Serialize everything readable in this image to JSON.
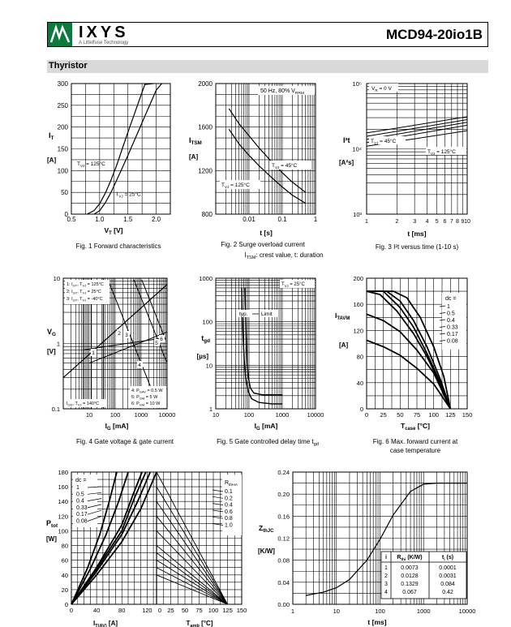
{
  "header": {
    "brand": "IXYS",
    "brand_sub": "A Littelfuse Technology",
    "part_number": "MCD94-20io1B"
  },
  "section": {
    "title": "Thyristor"
  },
  "chart_data": [
    {
      "id": "fig1",
      "type": "line",
      "xlabel": "V",
      "xlabel_sub": "T",
      "xunit": "[V]",
      "ylabel": "I",
      "ylabel_sub": "T",
      "yunit": "[A]",
      "xlim": [
        0.5,
        2.25
      ],
      "ylim": [
        0,
        300
      ],
      "xticks": [
        0.5,
        1.0,
        1.5,
        2.0
      ],
      "xtick_labels": [
        "0.5",
        "1.0",
        "1.5",
        "2.0"
      ],
      "yticks": [
        0,
        50,
        100,
        150,
        200,
        250,
        300
      ],
      "ytick_labels": [
        "0",
        "50",
        "100",
        "150",
        "200",
        "250",
        "300"
      ],
      "caption": "Fig. 1  Forward characteristics",
      "series": [
        {
          "name": "T",
          "name_sub": "VJ",
          "name_suffix": " = 125°C",
          "x": [
            0.78,
            0.9,
            1.0,
            1.1,
            1.2,
            1.3,
            1.4,
            1.5,
            1.6,
            1.7,
            1.8,
            1.95
          ],
          "y": [
            0,
            8,
            24,
            48,
            78,
            112,
            150,
            188,
            225,
            262,
            298,
            300
          ]
        },
        {
          "name": "T",
          "name_sub": "VJ",
          "name_suffix": " = 25°C",
          "x": [
            0.9,
            1.0,
            1.1,
            1.2,
            1.3,
            1.4,
            1.5,
            1.6,
            1.7,
            1.8,
            1.9,
            2.0,
            2.1
          ],
          "y": [
            0,
            8,
            26,
            50,
            78,
            106,
            135,
            165,
            195,
            225,
            255,
            285,
            300
          ]
        }
      ]
    },
    {
      "id": "fig2",
      "type": "line",
      "xlabel": "t",
      "xunit": "[s]",
      "ylabel": "I",
      "ylabel_sub": "TSM",
      "yunit": "[A]",
      "xscale": "log",
      "xlim": [
        0.001,
        1
      ],
      "ylim": [
        800,
        2000
      ],
      "xticks": [
        0.01,
        0.1,
        1
      ],
      "xtick_labels": [
        "0.01",
        "0.1",
        "1"
      ],
      "yticks": [
        800,
        1200,
        1600,
        2000
      ],
      "ytick_labels": [
        "800",
        "1200",
        "1600",
        "2000"
      ],
      "annotation": "50 Hz, 80% V",
      "annotation_sub": "RRM",
      "caption": "Fig. 2  Surge overload current",
      "caption2": "I",
      "caption2_sub": "TSM",
      "caption2_suffix": ": crest value, t: duration",
      "series": [
        {
          "name": "T",
          "name_sub": "VJ",
          "name_suffix": " = 45°C",
          "x": [
            0.0025,
            0.005,
            0.01,
            0.02,
            0.05,
            0.1,
            0.2,
            0.5
          ],
          "y": [
            1770,
            1630,
            1520,
            1410,
            1275,
            1180,
            1095,
            1000
          ]
        },
        {
          "name": "T",
          "name_sub": "VJ",
          "name_suffix": " = 125°C",
          "x": [
            0.0025,
            0.005,
            0.01,
            0.02,
            0.05,
            0.1,
            0.2,
            0.5
          ],
          "y": [
            1580,
            1445,
            1340,
            1245,
            1130,
            1050,
            975,
            900
          ]
        }
      ]
    },
    {
      "id": "fig3",
      "type": "line",
      "xlabel": "t",
      "xunit": "[ms]",
      "ylabel": "I²t",
      "yunit": "[A²s]",
      "xscale": "log",
      "yscale": "log",
      "xlim": [
        1,
        10
      ],
      "ylim": [
        1000,
        100000
      ],
      "xticks": [
        1,
        2,
        3,
        4,
        5,
        6,
        7,
        8,
        9,
        10
      ],
      "xtick_labels": [
        "1",
        "2",
        "3",
        "4",
        "5",
        "6",
        "7",
        "8",
        "9",
        "10"
      ],
      "yticks": [
        1000,
        10000,
        100000
      ],
      "ytick_labels": [
        "10³",
        "10⁴",
        "10⁵"
      ],
      "annotation": "V",
      "annotation_sub": "R",
      "annotation_suffix": " = 0 V",
      "caption": "Fig. 3  I²t versus time (1-10 s)",
      "series": [
        {
          "name": "T",
          "name_sub": "VJ",
          "name_suffix": " = 45°C",
          "x": [
            1,
            10
          ],
          "y": [
            15600,
            28000
          ]
        },
        {
          "name": "T",
          "name_sub": "VJ",
          "name_suffix": " = 125°C",
          "x": [
            1,
            10
          ],
          "y": [
            12500,
            23000
          ]
        }
      ]
    },
    {
      "id": "fig4",
      "type": "line",
      "xlabel": "I",
      "xlabel_sub": "G",
      "xunit": "[mA]",
      "ylabel": "V",
      "ylabel_sub": "G",
      "yunit": "[V]",
      "xscale": "log",
      "yscale": "log",
      "xlim": [
        1,
        10000
      ],
      "ylim": [
        0.1,
        10
      ],
      "xticks": [
        10,
        100,
        1000,
        10000
      ],
      "xtick_labels": [
        "10",
        "100",
        "1000",
        "10000"
      ],
      "yticks": [
        0.1,
        1,
        10
      ],
      "ytick_labels": [
        "0.1",
        "1",
        "10"
      ],
      "legend_top": [
        "1: I",
        "GT",
        ", T",
        "VJ",
        " = 125°C",
        "2: I",
        "GT",
        ", T",
        "VJ",
        " =   25°C",
        "3: I",
        "GT",
        ", T",
        "VJ",
        " =  -40°C"
      ],
      "legend_bottom": [
        "4: P",
        "GAV",
        " = 0.5 W",
        "5: P",
        "GM",
        " =   5 W",
        "6: P",
        "GM",
        " =  10 W"
      ],
      "annotation": "I",
      "annotation_sub": "GD",
      ", T": "",
      "annotation_suffix": ", T",
      "annotation_sub2": "VJ",
      "annotation_suffix2": " = 140°C",
      "curve_labels": [
        "1",
        "2",
        "3",
        "4",
        "5",
        "6"
      ],
      "caption": "Fig. 4  Gate voltage & gate current"
    },
    {
      "id": "fig5",
      "type": "line",
      "xlabel": "I",
      "xlabel_sub": "G",
      "xunit": "[mA]",
      "ylabel": "t",
      "ylabel_sub": "gd",
      "yunit": "[µs]",
      "xscale": "log",
      "yscale": "log",
      "xlim": [
        10,
        10000
      ],
      "ylim": [
        1,
        1000
      ],
      "xticks": [
        10,
        100,
        1000,
        10000
      ],
      "xtick_labels": [
        "10",
        "100",
        "1000",
        "10000"
      ],
      "yticks": [
        1,
        10,
        100,
        1000
      ],
      "ytick_labels": [
        "1",
        "10",
        "100",
        "1000"
      ],
      "annotation": "T",
      "annotation_sub": "VJ",
      "annotation_suffix": " = 25°C",
      "labels": [
        "typ.",
        "Limit"
      ],
      "caption": "Fig. 5  Gate controlled delay time t",
      "caption_sub": "gd",
      "series": [
        {
          "name": "typ.",
          "x": [
            60,
            62,
            66,
            72,
            80,
            95,
            120,
            200,
            500,
            1000
          ],
          "y": [
            600,
            200,
            50,
            12,
            5,
            2.5,
            1.7,
            1.4,
            1.3,
            1.3
          ]
        },
        {
          "name": "Limit",
          "x": [
            75,
            78,
            82,
            88,
            95,
            110,
            140,
            250,
            600,
            1000
          ],
          "y": [
            600,
            200,
            50,
            12,
            5.5,
            3,
            2.3,
            2.1,
            2.1,
            2.1
          ]
        }
      ]
    },
    {
      "id": "fig6",
      "type": "line",
      "xlabel": "T",
      "xlabel_sub": "case",
      "xunit": "[°C]",
      "ylabel": "I",
      "ylabel_sub": "TAVM",
      "yunit": "[A]",
      "xlim": [
        0,
        150
      ],
      "ylim": [
        0,
        200
      ],
      "xticks": [
        0,
        25,
        50,
        75,
        100,
        125,
        150
      ],
      "xtick_labels": [
        "0",
        "25",
        "50",
        "75",
        "100",
        "125",
        "150"
      ],
      "yticks": [
        0,
        40,
        80,
        120,
        160,
        200
      ],
      "ytick_labels": [
        "0",
        "40",
        "80",
        "120",
        "160",
        "200"
      ],
      "legend_title": "dc =",
      "legend": [
        "1",
        "0.5",
        "0.4",
        "0.33",
        "0.17",
        "0.08"
      ],
      "caption": "Fig. 6  Max. forward current at",
      "caption2": "case temperature",
      "series": [
        {
          "name": "1",
          "x": [
            0,
            40,
            60,
            80,
            100,
            115,
            125
          ],
          "y": [
            180,
            180,
            170,
            140,
            95,
            50,
            0
          ]
        },
        {
          "name": "0.5",
          "x": [
            0,
            30,
            50,
            70,
            90,
            110,
            125
          ],
          "y": [
            180,
            180,
            165,
            135,
            95,
            45,
            0
          ]
        },
        {
          "name": "0.4",
          "x": [
            0,
            25,
            50,
            70,
            90,
            110,
            125
          ],
          "y": [
            180,
            180,
            155,
            125,
            85,
            40,
            0
          ]
        },
        {
          "name": "0.33",
          "x": [
            0,
            20,
            45,
            70,
            90,
            110,
            125
          ],
          "y": [
            180,
            175,
            150,
            115,
            80,
            38,
            0
          ]
        },
        {
          "name": "0.17",
          "x": [
            0,
            25,
            50,
            75,
            100,
            125
          ],
          "y": [
            145,
            135,
            118,
            90,
            55,
            0
          ]
        },
        {
          "name": "0.08",
          "x": [
            0,
            25,
            50,
            75,
            100,
            125
          ],
          "y": [
            105,
            95,
            82,
            62,
            38,
            0
          ]
        }
      ]
    },
    {
      "id": "fig7",
      "type": "line",
      "xlabel": "I",
      "xlabel_sub": "T(AV)",
      "xunit": "[A]",
      "xlabel2": "T",
      "xlabel2_sub": "amb",
      "xunit2": "[°C]",
      "ylabel": "P",
      "ylabel_sub": "tot",
      "yunit": "[W]",
      "ylim": [
        0,
        180
      ],
      "yticks": [
        0,
        20,
        40,
        60,
        80,
        100,
        120,
        140,
        160,
        180
      ],
      "ytick_labels": [
        "0",
        "20",
        "40",
        "60",
        "80",
        "100",
        "120",
        "140",
        "160",
        "180"
      ],
      "xticks_left": [
        0,
        40,
        80,
        120
      ],
      "xtick_labels_left": [
        "0",
        "40",
        "80",
        "120"
      ],
      "xticks_right": [
        0,
        25,
        50,
        75,
        100,
        125,
        150
      ],
      "xtick_labels_right": [
        "0",
        "25",
        "50",
        "75",
        "100",
        "125",
        "150"
      ],
      "legend_left_title": "dc =",
      "legend_left": [
        "1",
        "0.5",
        "0.4",
        "0.33",
        "0.17",
        "0.08"
      ],
      "legend_right_title": "R",
      "legend_right_title_sub": "thHA",
      "legend_right": [
        "0.1",
        "0.2",
        "0.4",
        "0.6",
        "0.8",
        "1.0"
      ],
      "series": [
        {
          "name": "1",
          "x": [
            0,
            40,
            80,
            110,
            135
          ],
          "y": [
            0,
            40,
            85,
            130,
            180
          ]
        },
        {
          "name": "0.5",
          "x": [
            0,
            40,
            80,
            105,
            125
          ],
          "y": [
            0,
            45,
            95,
            140,
            180
          ]
        },
        {
          "name": "0.4",
          "x": [
            0,
            40,
            80,
            100,
            118
          ],
          "y": [
            0,
            48,
            100,
            145,
            180
          ]
        },
        {
          "name": "0.33",
          "x": [
            0,
            40,
            80,
            98,
            112
          ],
          "y": [
            0,
            50,
            108,
            150,
            180
          ]
        },
        {
          "name": "0.17",
          "x": [
            0,
            30,
            55,
            75,
            90
          ],
          "y": [
            0,
            48,
            95,
            140,
            180
          ]
        },
        {
          "name": "0.08",
          "x": [
            0,
            25,
            45,
            60,
            72
          ],
          "y": [
            0,
            48,
            95,
            140,
            180
          ]
        }
      ]
    },
    {
      "id": "fig8",
      "type": "line",
      "xlabel": "t",
      "xunit": "[ms]",
      "ylabel": "Z",
      "ylabel_sub": "thJC",
      "yunit": "[K/W]",
      "xscale": "log",
      "xlim": [
        1,
        10000
      ],
      "ylim": [
        0,
        0.24
      ],
      "xticks": [
        1,
        10,
        100,
        1000,
        10000
      ],
      "xtick_labels": [
        "1",
        "10",
        "100",
        "1000",
        "10000"
      ],
      "yticks": [
        0,
        0.04,
        0.08,
        0.12,
        0.16,
        0.2,
        0.24
      ],
      "ytick_labels": [
        "0.00",
        "0.04",
        "0.08",
        "0.12",
        "0.16",
        "0.20",
        "0.24"
      ],
      "series": [
        {
          "name": "Z",
          "x": [
            2,
            5,
            10,
            20,
            50,
            100,
            200,
            500,
            1000,
            2000,
            3000,
            5000,
            10000
          ],
          "y": [
            0.016,
            0.022,
            0.03,
            0.045,
            0.08,
            0.118,
            0.162,
            0.205,
            0.218,
            0.22,
            0.22,
            0.22,
            0.22
          ]
        }
      ],
      "table": {
        "headers": [
          "i",
          "R",
          "thi",
          "(K/W)",
          "t",
          "i",
          "(s)"
        ],
        "rows": [
          [
            "1",
            "0.0073",
            "0.0001"
          ],
          [
            "2",
            "0.0128",
            "0.0031"
          ],
          [
            "3",
            "0.1329",
            "0.084"
          ],
          [
            "4",
            "0.067",
            "0.42"
          ]
        ]
      }
    }
  ]
}
